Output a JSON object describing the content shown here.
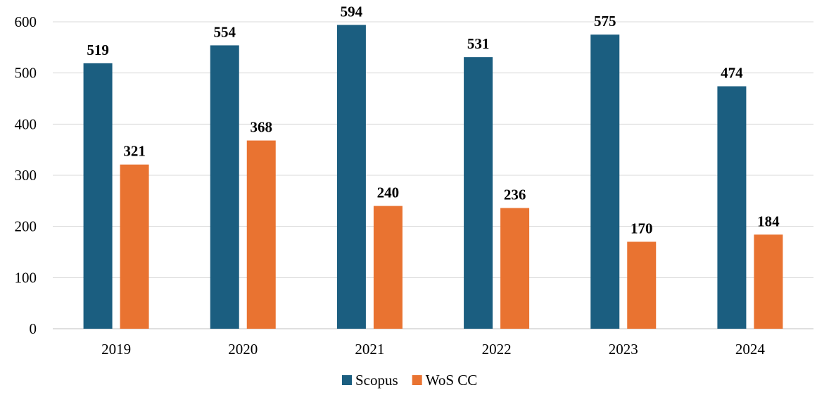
{
  "chart_data": {
    "type": "bar",
    "title": "",
    "xlabel": "",
    "ylabel": "",
    "categories": [
      "2019",
      "2020",
      "2021",
      "2022",
      "2023",
      "2024"
    ],
    "series": [
      {
        "name": "Scopus",
        "values": [
          519,
          554,
          594,
          531,
          575,
          474
        ],
        "color": "#1b5e80"
      },
      {
        "name": "WoS CC",
        "values": [
          321,
          368,
          240,
          236,
          170,
          184
        ],
        "color": "#e97331"
      }
    ],
    "ylim": [
      0,
      600
    ],
    "yticks": [
      0,
      100,
      200,
      300,
      400,
      500,
      600
    ],
    "grid": true,
    "legend_position": "bottom-center",
    "data_labels": true
  }
}
